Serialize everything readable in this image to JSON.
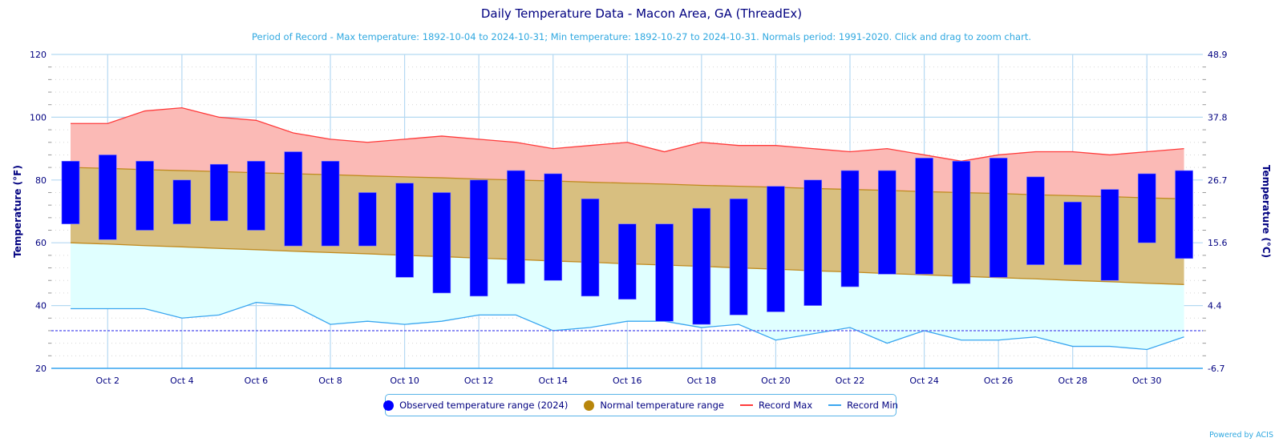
{
  "chart_data": {
    "type": "bar",
    "title": "Daily Temperature Data - Macon Area, GA (ThreadEx)",
    "subtitle": "Period of Record - Max temperature: 1892-10-04 to 2024-10-31; Min temperature: 1892-10-27 to 2024-10-31. Normals period: 1991-2020. Click and drag to zoom chart.",
    "ylabel": "Temperature (°F)",
    "ylabel_right": "Temperature (°C)",
    "ylim": [
      20,
      120
    ],
    "y_ticks": [
      "120",
      "100",
      "80",
      "60",
      "40",
      "20"
    ],
    "y_tick_values": [
      120,
      100,
      80,
      60,
      40,
      20
    ],
    "y_ticks_right": [
      "48.9",
      "37.8",
      "26.7",
      "15.6",
      "4.4",
      "-6.7"
    ],
    "x_tick_labels": [
      "Oct 2",
      "Oct 4",
      "Oct 6",
      "Oct 8",
      "Oct 10",
      "Oct 12",
      "Oct 14",
      "Oct 16",
      "Oct 18",
      "Oct 20",
      "Oct 22",
      "Oct 24",
      "Oct 26",
      "Oct 28",
      "Oct 30"
    ],
    "x_tick_days": [
      2,
      4,
      6,
      8,
      10,
      12,
      14,
      16,
      18,
      20,
      22,
      24,
      26,
      28,
      30
    ],
    "days": [
      1,
      2,
      3,
      4,
      5,
      6,
      7,
      8,
      9,
      10,
      11,
      12,
      13,
      14,
      15,
      16,
      17,
      18,
      19,
      20,
      21,
      22,
      23,
      24,
      25,
      26,
      27,
      28,
      29,
      30,
      31
    ],
    "freezing_line": 32,
    "series": [
      {
        "name": "Observed temperature range (2024)",
        "color": "#0000ff",
        "high": [
          86,
          88,
          86,
          80,
          85,
          86,
          89,
          86,
          76,
          79,
          76,
          80,
          83,
          82,
          74,
          66,
          66,
          71,
          74,
          78,
          80,
          83,
          83,
          87,
          86,
          87,
          81,
          73,
          77,
          82,
          83
        ],
        "low": [
          66,
          61,
          64,
          66,
          67,
          64,
          59,
          59,
          59,
          49,
          44,
          43,
          47,
          48,
          43,
          42,
          35,
          34,
          37,
          38,
          40,
          46,
          50,
          50,
          47,
          49,
          53,
          53,
          48,
          60,
          55
        ]
      },
      {
        "name": "Normal temperature range",
        "color": "#b8860b",
        "high": [
          84,
          83.7,
          83.3,
          83,
          82.7,
          82.3,
          82,
          81.7,
          81.3,
          81,
          80.7,
          80.3,
          80,
          79.7,
          79.3,
          79,
          78.7,
          78.3,
          78,
          77.7,
          77.3,
          77,
          76.7,
          76.3,
          76,
          75.7,
          75.3,
          75,
          74.7,
          74.3,
          74
        ],
        "low": [
          60,
          59.6,
          59.1,
          58.7,
          58.2,
          57.8,
          57.3,
          56.9,
          56.5,
          56,
          55.6,
          55.1,
          54.7,
          54.2,
          53.8,
          53.3,
          52.9,
          52.5,
          52,
          51.6,
          51.1,
          50.7,
          50.2,
          49.8,
          49.3,
          48.9,
          48.5,
          48,
          47.6,
          47.1,
          46.7
        ]
      },
      {
        "name": "Record Max",
        "color": "#ff3b3b",
        "values": [
          98,
          98,
          102,
          103,
          100,
          99,
          95,
          93,
          92,
          93,
          94,
          93,
          92,
          90,
          91,
          92,
          89,
          92,
          91,
          91,
          90,
          89,
          90,
          88,
          86,
          88,
          89,
          89,
          88,
          89,
          90
        ]
      },
      {
        "name": "Record Min",
        "color": "#3aa6f0",
        "values": [
          39,
          39,
          39,
          36,
          37,
          41,
          40,
          34,
          35,
          34,
          35,
          37,
          37,
          32,
          33,
          35,
          35,
          33,
          34,
          29,
          31,
          33,
          28,
          32,
          29,
          29,
          30,
          27,
          27,
          26,
          30
        ]
      }
    ],
    "legend": "bottom-center",
    "grid": true
  },
  "legend": {
    "observed": "Observed temperature range (2024)",
    "normal": "Normal temperature range",
    "record_max": "Record Max",
    "record_min": "Record Min"
  },
  "credit": "Powered by ACIS",
  "colors": {
    "observed": "#0000ff",
    "normal_fill": "#d8bf80",
    "normal_line": "#c08a1e",
    "record_max_fill": "#fbbab6",
    "record_max_line": "#ff3b3b",
    "record_min_fill": "#e0ffff",
    "record_min_line": "#3aa6f0",
    "freeze_line": "#6a6af0"
  }
}
